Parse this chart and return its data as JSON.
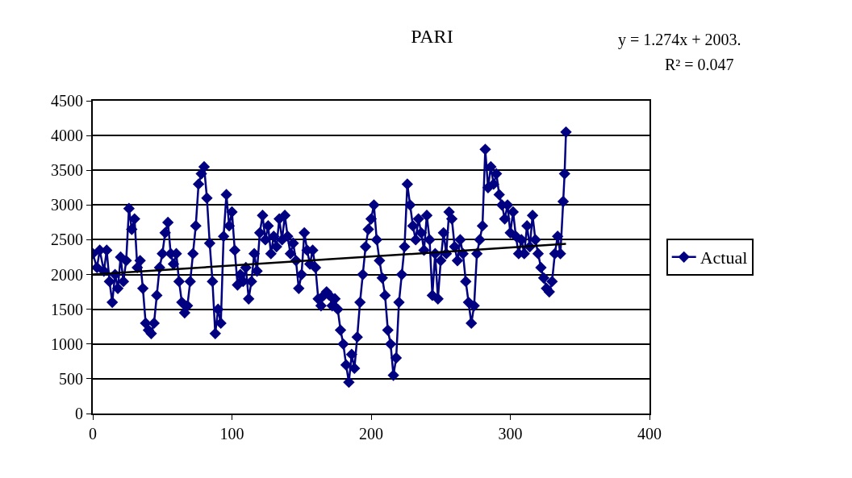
{
  "chart_data": {
    "type": "line",
    "title": "PARI",
    "annotations": [
      "y = 1.274x + 2003.",
      "R² = 0.047"
    ],
    "xlim": [
      0,
      400
    ],
    "xticks": [
      0,
      100,
      200,
      300,
      400
    ],
    "ylim": [
      0,
      4500
    ],
    "yticks": [
      0,
      500,
      1000,
      1500,
      2000,
      2500,
      3000,
      3500,
      4000,
      4500
    ],
    "grid": "y",
    "legend": "right",
    "marker": "diamond",
    "line_style": "solid",
    "series": [
      {
        "name": "Actual",
        "color": "#000080",
        "x": [
          0,
          3,
          5,
          8,
          10,
          12,
          14,
          16,
          18,
          20,
          22,
          24,
          26,
          28,
          30,
          32,
          34,
          36,
          38,
          40,
          42,
          44,
          46,
          48,
          50,
          52,
          54,
          56,
          58,
          60,
          62,
          64,
          66,
          68,
          70,
          72,
          74,
          76,
          78,
          80,
          82,
          84,
          86,
          88,
          90,
          92,
          94,
          96,
          98,
          100,
          102,
          104,
          106,
          108,
          110,
          112,
          114,
          116,
          118,
          120,
          122,
          124,
          126,
          128,
          130,
          132,
          134,
          136,
          138,
          140,
          142,
          144,
          146,
          148,
          150,
          152,
          154,
          156,
          158,
          160,
          162,
          164,
          166,
          168,
          170,
          172,
          174,
          176,
          178,
          180,
          182,
          184,
          186,
          188,
          190,
          192,
          194,
          196,
          198,
          200,
          202,
          204,
          206,
          208,
          210,
          212,
          214,
          216,
          218,
          220,
          222,
          224,
          226,
          228,
          230,
          232,
          234,
          236,
          238,
          240,
          242,
          244,
          246,
          248,
          250,
          252,
          254,
          256,
          258,
          260,
          262,
          264,
          266,
          268,
          270,
          272,
          274,
          276,
          278,
          280,
          282,
          284,
          286,
          288,
          290,
          292,
          294,
          296,
          298,
          300,
          302,
          304,
          306,
          308,
          310,
          312,
          314,
          316,
          318,
          320,
          322,
          324,
          326,
          328,
          330,
          332,
          334,
          336,
          338,
          339,
          340
        ],
        "values": [
          2300,
          2100,
          2350,
          2050,
          2350,
          1900,
          1600,
          2000,
          1800,
          2250,
          1900,
          2200,
          2950,
          2650,
          2800,
          2100,
          2200,
          1800,
          1300,
          1200,
          1150,
          1300,
          1700,
          2100,
          2300,
          2600,
          2750,
          2300,
          2150,
          2300,
          1900,
          1600,
          1450,
          1550,
          1900,
          2300,
          2700,
          3300,
          3450,
          3550,
          3100,
          2450,
          1900,
          1150,
          1500,
          1300,
          2550,
          3150,
          2700,
          2900,
          2350,
          1850,
          2000,
          1900,
          2100,
          1650,
          1900,
          2300,
          2050,
          2600,
          2850,
          2500,
          2700,
          2300,
          2550,
          2400,
          2800,
          2500,
          2850,
          2550,
          2300,
          2450,
          2200,
          1800,
          2000,
          2600,
          2350,
          2150,
          2350,
          2100,
          1650,
          1550,
          1700,
          1750,
          1700,
          1550,
          1650,
          1500,
          1200,
          1000,
          700,
          450,
          850,
          650,
          1100,
          1600,
          2000,
          2400,
          2650,
          2800,
          3000,
          2500,
          2200,
          1950,
          1700,
          1200,
          1000,
          550,
          800,
          1600,
          2000,
          2400,
          3300,
          3000,
          2700,
          2500,
          2800,
          2600,
          2350,
          2850,
          2500,
          1700,
          2300,
          1650,
          2200,
          2600,
          2300,
          2900,
          2800,
          2400,
          2200,
          2500,
          2300,
          1900,
          1600,
          1300,
          1550,
          2300,
          2500,
          2700,
          3800,
          3250,
          3550,
          3300,
          3450,
          3150,
          3000,
          2800,
          3000,
          2600,
          2900,
          2550,
          2300,
          2500,
          2300,
          2700,
          2400,
          2850,
          2500,
          2300,
          2100,
          1950,
          1800,
          1750,
          1900,
          2300,
          2550,
          2300,
          3050,
          3450,
          4050
        ]
      },
      {
        "color": "#000000",
        "marker": "none",
        "x": [
          0,
          340
        ],
        "values": [
          2000,
          2440
        ]
      }
    ]
  }
}
